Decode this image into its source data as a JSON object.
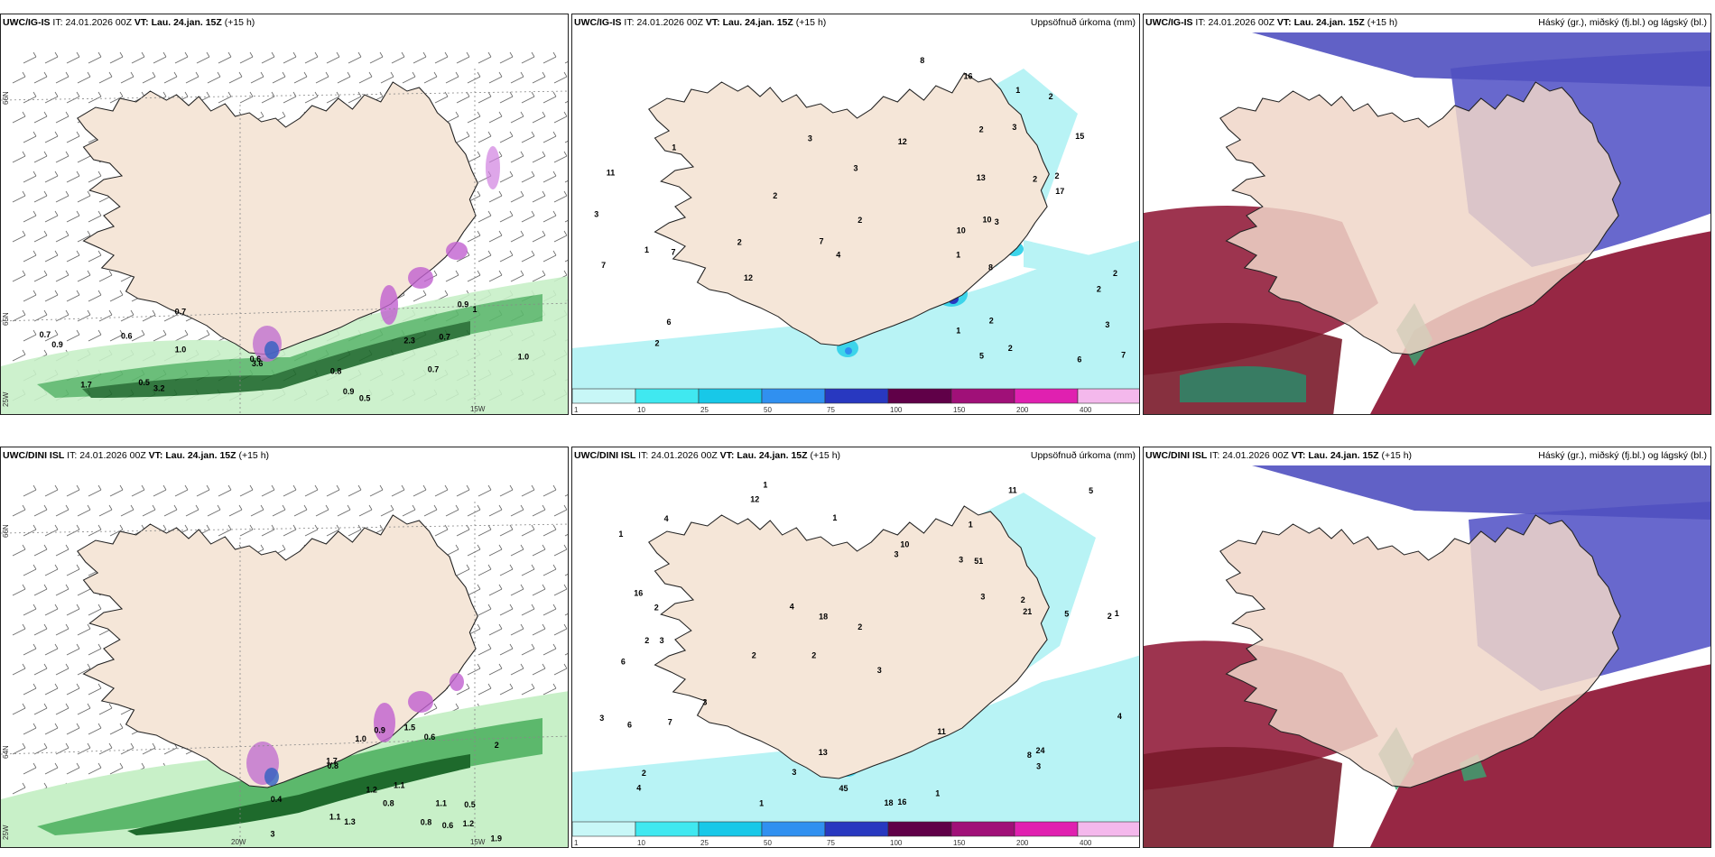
{
  "rows": [
    {
      "model": "UWC/IG-IS",
      "it_label": "IT:",
      "it_value": "24.01.2026 00Z",
      "vt_label": "VT:",
      "vt_value": "Lau. 24.jan. 15Z",
      "lead": "(+15 h)"
    },
    {
      "model": "UWC/DINI ISL",
      "it_label": "IT:",
      "it_value": "24.01.2026 00Z",
      "vt_label": "VT:",
      "vt_value": "Lau. 24.jan. 15Z",
      "lead": "(+15 h)"
    }
  ],
  "titles": {
    "precip": "Uppsöfnuð úrkoma (mm)",
    "clouds": "Háský (gr.), miðský (fj.bl.) og lágský (bl.)"
  },
  "axis_labels": {
    "lat66": "66N",
    "lat65": "65N",
    "lat64": "64N",
    "lon25": "25W",
    "lon20": "20W",
    "lon15": "15W"
  },
  "colorbar": {
    "ticks": [
      "1",
      "10",
      "25",
      "50",
      "75",
      "100",
      "150",
      "200",
      "400"
    ],
    "colors": [
      "#c8f7f7",
      "#40e8f0",
      "#18c8e8",
      "#3090f0",
      "#2838c0",
      "#600048",
      "#a01078",
      "#e020b0",
      "#f4b8ec"
    ]
  },
  "colors": {
    "land": "#f5e6d8",
    "sea": "#ffffff",
    "coast": "#222222",
    "precip_light": "#b8f3f5",
    "precip_mid": "#3cd4ea",
    "high_cloud": "#9a9ab0",
    "mid_cloud": "#5858c8",
    "low_cloud": "#8c1030",
    "wind_green": "#3c9a4c"
  },
  "wind_labels_top": [
    "0.5",
    "0.7",
    "0.5",
    "0.6",
    "0.7",
    "0.9",
    "1.0",
    "1.0",
    "3.6",
    "3.2",
    "1.7",
    "0.7",
    "0.6",
    "0.8",
    "2.3",
    "0.9",
    "0.9",
    "1",
    "0.7"
  ],
  "precip_labels_top": [
    "1",
    "2",
    "2",
    "2",
    "1",
    "3",
    "2",
    "3",
    "3",
    "2",
    "10",
    "10",
    "7",
    "8",
    "12",
    "6",
    "2",
    "1",
    "1",
    "3",
    "4",
    "3",
    "13",
    "16",
    "17",
    "6",
    "1",
    "2",
    "7",
    "7",
    "15",
    "8",
    "11",
    "2",
    "2",
    "2",
    "12",
    "2",
    "3",
    "5",
    "7",
    "2"
  ],
  "wind_labels_bottom": [
    "3",
    "0.5",
    "1.1",
    "0.8",
    "1.0",
    "1.5",
    "1.2",
    "0.6",
    "0.6",
    "1.1",
    "1.9",
    "0.8",
    "1.3",
    "0.9",
    "0.8",
    "1.7",
    "1.1",
    "0.4",
    "1.2",
    "2"
  ],
  "precip_labels_bottom": [
    "1",
    "1",
    "2",
    "2",
    "3",
    "3",
    "1",
    "3",
    "6",
    "3",
    "2",
    "4",
    "12",
    "2",
    "18",
    "16",
    "13",
    "11",
    "3",
    "3",
    "2",
    "2",
    "1",
    "5",
    "3",
    "16",
    "18",
    "21",
    "24",
    "6",
    "8",
    "10",
    "7",
    "4",
    "11",
    "4",
    "2",
    "3",
    "5",
    "1",
    "2",
    "1",
    "1",
    "4",
    "45",
    "51",
    "3"
  ]
}
